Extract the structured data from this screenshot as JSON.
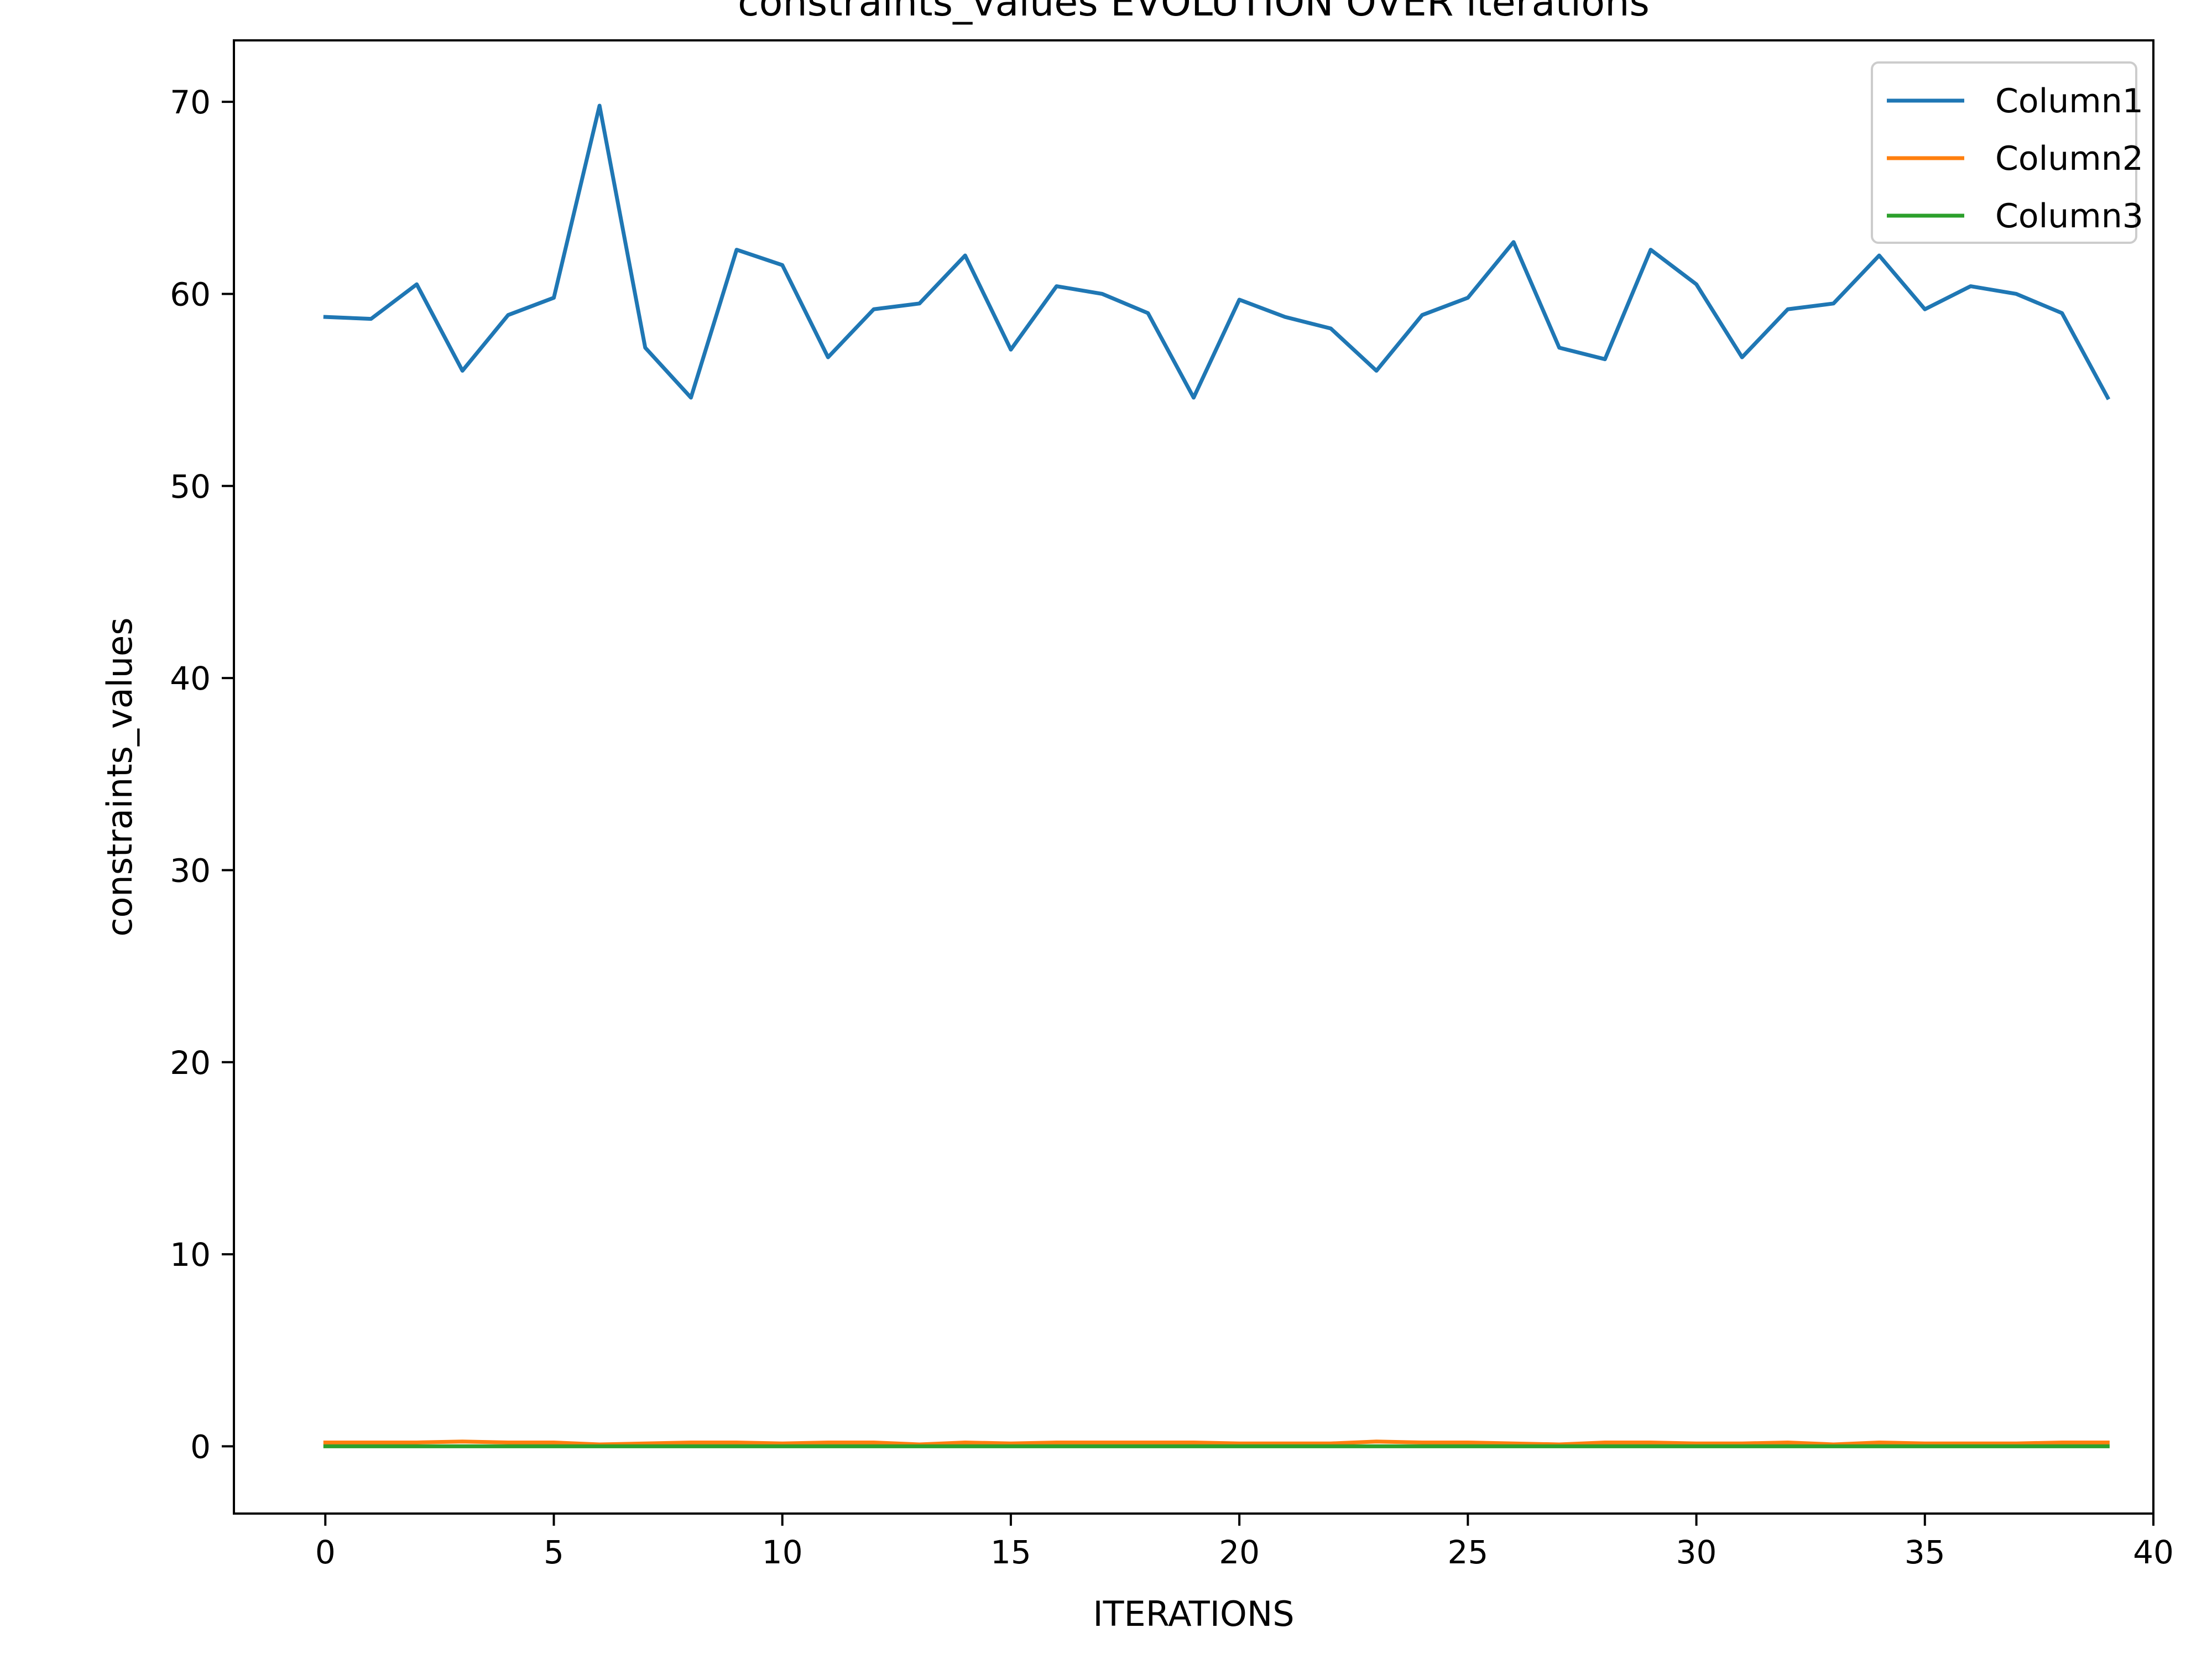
{
  "chart_data": {
    "type": "line",
    "title": "constraints_values EVOLUTION OVER iterations",
    "xlabel": "ITERATIONS",
    "ylabel": "constraints_values",
    "xlim": [
      -2,
      40
    ],
    "ylim": [
      -3.5,
      73.2
    ],
    "xticks": [
      0,
      5,
      10,
      15,
      20,
      25,
      30,
      35,
      40
    ],
    "yticks": [
      0,
      10,
      20,
      30,
      40,
      50,
      60,
      70
    ],
    "grid": false,
    "legend_position": "top-right",
    "x": [
      0,
      1,
      2,
      3,
      4,
      5,
      6,
      7,
      8,
      9,
      10,
      11,
      12,
      13,
      14,
      15,
      16,
      17,
      18,
      19,
      20,
      21,
      22,
      23,
      24,
      25,
      26,
      27,
      28,
      29,
      30,
      31,
      32,
      33,
      34,
      35,
      36,
      37,
      38,
      39
    ],
    "series": [
      {
        "name": "Column1",
        "color": "#1f77b4",
        "values": [
          58.8,
          58.7,
          60.5,
          56.0,
          58.9,
          59.8,
          69.8,
          57.2,
          54.6,
          62.3,
          61.5,
          56.7,
          59.2,
          59.5,
          62.0,
          57.1,
          60.4,
          60.0,
          59.0,
          54.6,
          59.7,
          58.8,
          58.2,
          56.0,
          58.9,
          59.8,
          62.7,
          57.2,
          56.6,
          62.3,
          60.5,
          56.7,
          59.2,
          59.5,
          62.0,
          59.2,
          60.4,
          60.0,
          59.0,
          54.6
        ]
      },
      {
        "name": "Column2",
        "color": "#ff7f0e",
        "values": [
          0.2,
          0.2,
          0.2,
          0.25,
          0.2,
          0.2,
          0.1,
          0.15,
          0.2,
          0.2,
          0.15,
          0.2,
          0.2,
          0.1,
          0.2,
          0.15,
          0.2,
          0.2,
          0.2,
          0.2,
          0.15,
          0.15,
          0.15,
          0.25,
          0.2,
          0.2,
          0.15,
          0.1,
          0.2,
          0.2,
          0.15,
          0.15,
          0.2,
          0.1,
          0.2,
          0.15,
          0.15,
          0.15,
          0.2,
          0.2
        ]
      },
      {
        "name": "Column3",
        "color": "#2ca02c",
        "values": [
          0,
          0,
          0,
          0,
          0,
          0,
          0,
          0,
          0,
          0,
          0,
          0,
          0,
          0,
          0,
          0,
          0,
          0,
          0,
          0,
          0,
          0,
          0,
          0,
          0,
          0,
          0,
          0,
          0,
          0,
          0,
          0,
          0,
          0,
          0,
          0,
          0,
          0,
          0,
          0
        ]
      }
    ]
  }
}
